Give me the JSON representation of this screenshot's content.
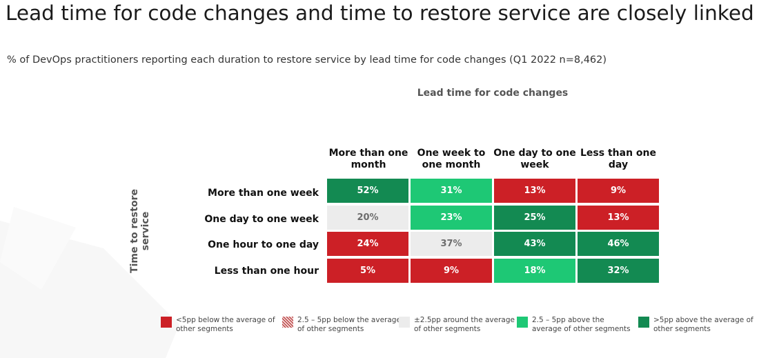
{
  "title": "Lead time for code changes and time to restore service are closely linked",
  "subtitle": "% of DevOps practitioners reporting each duration to restore service by lead time for code changes (Q1 2022 n=8,462)",
  "chart_data": {
    "type": "heatmap",
    "title": "Lead time for code changes and time to restore service are closely linked",
    "xlabel": "Lead time for code changes",
    "ylabel": "Time to restore service",
    "columns": [
      "More than one month",
      "One week to one month",
      "One day to one week",
      "Less than one day"
    ],
    "rows": [
      "More than one week",
      "One day to one week",
      "One hour to one day",
      "Less than one hour"
    ],
    "values": [
      [
        52,
        31,
        13,
        9
      ],
      [
        20,
        23,
        25,
        13
      ],
      [
        24,
        37,
        43,
        46
      ],
      [
        5,
        9,
        18,
        32
      ]
    ],
    "labels": [
      [
        "52%",
        "31%",
        "13%",
        "9%"
      ],
      [
        "20%",
        "23%",
        "25%",
        "13%"
      ],
      [
        "24%",
        "37%",
        "43%",
        "46%"
      ],
      [
        "5%",
        "9%",
        "18%",
        "32%"
      ]
    ],
    "categories": [
      [
        "far-above",
        "above",
        "far-below",
        "far-below"
      ],
      [
        "around",
        "above",
        "far-above",
        "far-below"
      ],
      [
        "far-below",
        "around",
        "far-above",
        "far-above"
      ],
      [
        "far-below",
        "far-below",
        "above",
        "far-above"
      ]
    ],
    "legend": [
      {
        "key": "far-below",
        "label": "<5pp below the average of other segments",
        "color": "#cc2026"
      },
      {
        "key": "below",
        "label": "2.5 – 5pp below the average of other segments",
        "color": "#d89a9a"
      },
      {
        "key": "around",
        "label": "±2.5pp around the average of other segments",
        "color": "#ececec"
      },
      {
        "key": "above",
        "label": "2.5 – 5pp above the average of other segments",
        "color": "#1ec875"
      },
      {
        "key": "far-above",
        "label": ">5pp above the average of other segments",
        "color": "#138a52"
      }
    ],
    "legend_position": "bottom"
  }
}
